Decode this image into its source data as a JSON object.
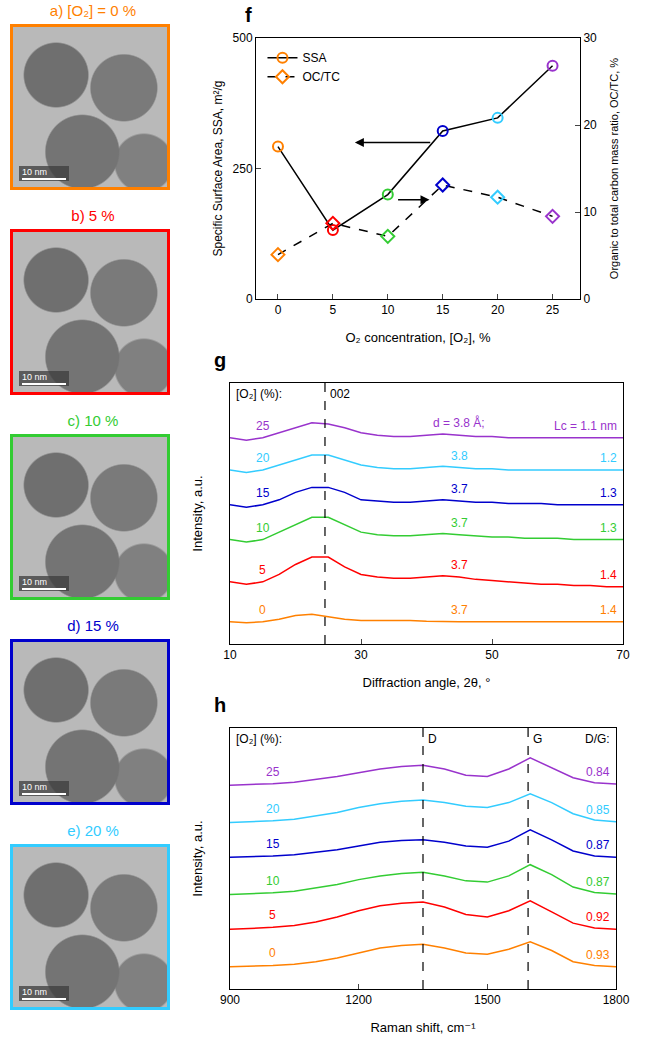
{
  "images": [
    {
      "title": "a) [O₂] = 0 %",
      "color": "#ff8000",
      "scale_bar": "10 nm"
    },
    {
      "title": "b) 5 %",
      "color": "#ff0000",
      "scale_bar": "10 nm"
    },
    {
      "title": "c) 10 %",
      "color": "#33cc33",
      "scale_bar": "10 nm"
    },
    {
      "title": "d) 15 %",
      "color": "#0000cc",
      "scale_bar": "10 nm"
    },
    {
      "title": "e) 20 %",
      "color": "#33ccff",
      "scale_bar": "10 nm"
    }
  ],
  "chart_data": [
    {
      "type": "line",
      "panel": "f",
      "x": [
        0,
        5,
        10,
        15,
        20,
        25
      ],
      "xlabel": "O₂ concentration, [O₂], %",
      "ylabel": "Specific Surface Area, SSA, m²/g",
      "y2label": "Organic to total carbon mass ratio, OC/TC, %",
      "xlim": [
        -2,
        27.5
      ],
      "xticks": [
        0,
        5,
        10,
        15,
        20,
        25
      ],
      "ylim": [
        0,
        500
      ],
      "yticks": [
        0,
        250,
        500
      ],
      "y2lim": [
        0,
        30
      ],
      "y2ticks": [
        0,
        10,
        20,
        30
      ],
      "legend": "top-left",
      "series": [
        {
          "name": "SSA",
          "color": "#000000",
          "marker": "circle-open",
          "line_style": "solid",
          "values": [
            292,
            132,
            200,
            322,
            347,
            447
          ],
          "colors": [
            "#ff8000",
            "#ff0000",
            "#33cc33",
            "#0000cc",
            "#33ccff",
            "#9933cc"
          ]
        },
        {
          "name": "OC/TC",
          "axis": "y2",
          "color": "#000000",
          "marker": "diamond-open",
          "line_style": "dash",
          "values": [
            5.1,
            8.7,
            7.2,
            13.1,
            11.7,
            9.5
          ],
          "colors": [
            "#ff8000",
            "#ff0000",
            "#33cc33",
            "#0000cc",
            "#33ccff",
            "#9933cc"
          ]
        }
      ]
    },
    {
      "type": "line",
      "panel": "g",
      "x": [
        10,
        12.5,
        15,
        17.5,
        20,
        22.5,
        25,
        27.5,
        30,
        32.5,
        35,
        37.5,
        40,
        42.5,
        45,
        47.5,
        50,
        52.5,
        55,
        57.5,
        60,
        62.5,
        65,
        67.5,
        70
      ],
      "xlabel": "Diffraction angle, 2θ, °",
      "ylabel": "Intensity, a.u.",
      "xlim": [
        10,
        70
      ],
      "xticks": [
        10,
        30,
        50,
        70
      ],
      "ylim": [
        0,
        105
      ],
      "tick_labels": "x",
      "series_heading": "[O₂] (%):",
      "peaks": [
        {
          "x": 24.5,
          "label": "002"
        }
      ],
      "series": [
        {
          "name": "25",
          "color": "#9933cc",
          "line_style": "solid",
          "d_label": "d = 3.8 Å;",
          "lc_label": "Lc = 1.1 nm",
          "values": [
            83,
            82,
            83,
            85,
            87,
            89,
            88.5,
            87,
            85,
            84,
            83.5,
            83.5,
            84,
            84.5,
            84,
            83.5,
            83.5,
            83,
            83,
            83,
            83,
            83,
            83,
            83,
            83
          ]
        },
        {
          "name": "20",
          "color": "#33ccff",
          "line_style": "solid",
          "d_label": "3.8",
          "lc_label": "1.2",
          "values": [
            70,
            69,
            70,
            72,
            74,
            76,
            76,
            74,
            72,
            71,
            70.5,
            70.5,
            71,
            71.5,
            71,
            70.5,
            70.5,
            70,
            70,
            70,
            70,
            70,
            70,
            70,
            70
          ]
        },
        {
          "name": "15",
          "color": "#0000cc",
          "line_style": "solid",
          "d_label": "3.7",
          "lc_label": "1.3",
          "values": [
            56,
            55,
            56,
            58,
            61,
            63,
            63,
            61,
            58,
            57.5,
            57,
            57,
            57.5,
            58,
            57.5,
            57,
            57,
            56.5,
            56.5,
            56.5,
            56,
            56,
            56,
            56,
            56
          ]
        },
        {
          "name": "10",
          "color": "#33cc33",
          "line_style": "solid",
          "d_label": "3.7",
          "lc_label": "1.3",
          "values": [
            42,
            41,
            42,
            45,
            48,
            51,
            51,
            48,
            45,
            44,
            43.5,
            43.5,
            44,
            44.5,
            44,
            43.5,
            43,
            43,
            42.5,
            42.5,
            42.5,
            42,
            42,
            42,
            42
          ]
        },
        {
          "name": "5",
          "color": "#ff0000",
          "line_style": "solid",
          "d_label": "3.7",
          "lc_label": "1.4",
          "values": [
            25,
            24,
            25,
            28,
            32,
            35,
            35,
            31,
            28,
            27,
            26.5,
            26.5,
            27,
            27.5,
            27,
            26,
            25.5,
            25,
            24.5,
            24,
            24,
            23.5,
            23.5,
            23,
            23
          ]
        },
        {
          "name": "0",
          "color": "#ff8000",
          "line_style": "solid",
          "d_label": "3.7",
          "lc_label": "1.4",
          "values": [
            9,
            8.5,
            9,
            10,
            11.5,
            12,
            11,
            10,
            9.5,
            9.5,
            9.8,
            9.5,
            9.2,
            9,
            9,
            9,
            9,
            9,
            9,
            9,
            9,
            9,
            9,
            9,
            9
          ]
        }
      ]
    },
    {
      "type": "line",
      "panel": "h",
      "x": [
        900,
        950,
        1000,
        1050,
        1100,
        1150,
        1200,
        1250,
        1300,
        1350,
        1400,
        1450,
        1500,
        1550,
        1600,
        1650,
        1700,
        1750,
        1800
      ],
      "xlabel": "Raman shift, cm⁻¹",
      "ylabel": "Intensity, a.u.",
      "xlim": [
        900,
        1800
      ],
      "xticks": [
        900,
        1200,
        1500,
        1800
      ],
      "ylim": [
        0,
        105
      ],
      "tick_labels": "x",
      "series_heading": "[O₂] (%):",
      "ratio_heading": "D/G:",
      "peaks": [
        {
          "x": 1350,
          "label": "D"
        },
        {
          "x": 1595,
          "label": "G"
        }
      ],
      "series": [
        {
          "name": "25",
          "color": "#9933cc",
          "line_style": "solid",
          "dg_label": "0.84",
          "values": [
            82,
            82.2,
            82.6,
            83.2,
            84.3,
            85.5,
            87,
            88.5,
            89.5,
            90,
            88.5,
            86,
            85.5,
            88.5,
            93,
            89,
            85,
            83,
            82.5
          ]
        },
        {
          "name": "20",
          "color": "#33ccff",
          "line_style": "solid",
          "dg_label": "0.85",
          "values": [
            67,
            67.3,
            67.7,
            68.3,
            69.5,
            71,
            73,
            74.5,
            75.5,
            76,
            75,
            73.5,
            73,
            75,
            78.5,
            75,
            70.5,
            68,
            67.3
          ]
        },
        {
          "name": "15",
          "color": "#0000cc",
          "line_style": "solid",
          "dg_label": "0.87",
          "values": [
            53,
            53.2,
            53.5,
            54,
            55,
            56,
            57.5,
            59,
            59.7,
            60,
            59,
            57.5,
            57,
            59.5,
            64,
            60,
            55.5,
            53.5,
            53
          ]
        },
        {
          "name": "10",
          "color": "#33cc33",
          "line_style": "solid",
          "dg_label": "0.87",
          "values": [
            38,
            38.3,
            38.7,
            39.3,
            40.5,
            42,
            44,
            45.5,
            46.5,
            47,
            45.5,
            43.5,
            43,
            45.5,
            50,
            46,
            41,
            38.8,
            38.2
          ]
        },
        {
          "name": "5",
          "color": "#ff0000",
          "line_style": "solid",
          "dg_label": "0.92",
          "values": [
            24,
            24.3,
            24.8,
            25.5,
            27,
            29,
            31.5,
            33.5,
            34.5,
            35,
            33,
            30,
            29,
            31.5,
            35.5,
            31,
            26.5,
            24.5,
            24
          ]
        },
        {
          "name": "0",
          "color": "#ff8000",
          "line_style": "solid",
          "dg_label": "0.93",
          "values": [
            9,
            9.2,
            9.5,
            10,
            11,
            12.5,
            14.5,
            16.5,
            17.5,
            18,
            16.5,
            14.5,
            14,
            16,
            19,
            15.5,
            11,
            9.5,
            9
          ]
        }
      ]
    }
  ]
}
